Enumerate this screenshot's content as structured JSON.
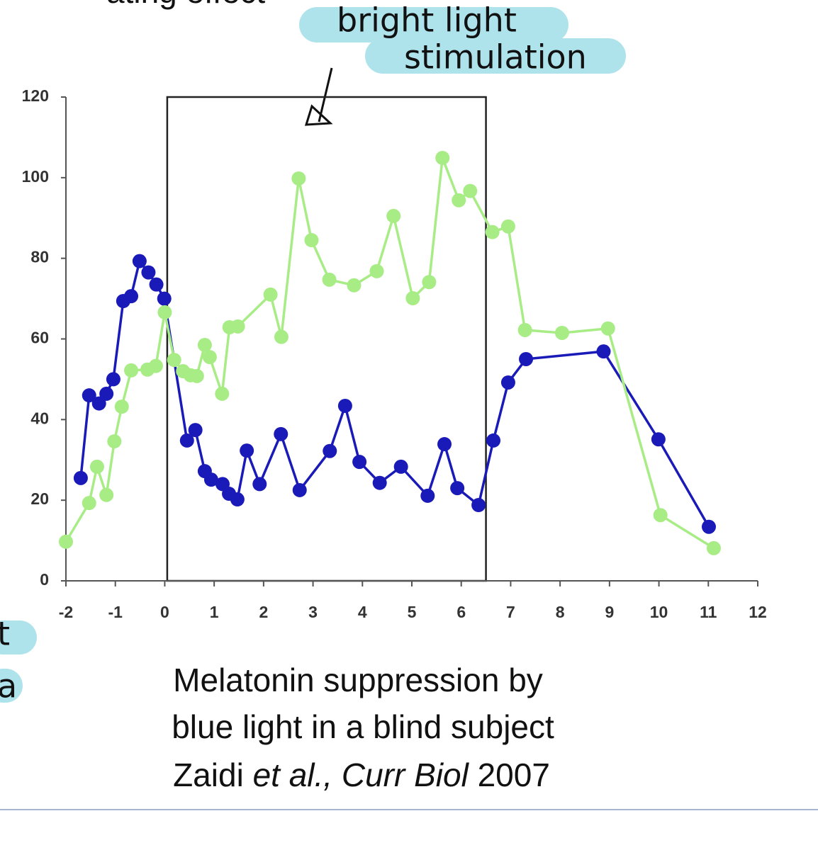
{
  "chart_data": {
    "type": "line",
    "fragments": [
      "ating effect",
      "t",
      "a"
    ],
    "annotation": [
      "bright light",
      "stimulation"
    ],
    "caption": [
      "Melatonin suppression by",
      "blue light in a blind subject"
    ],
    "citation": [
      "Zaidi ",
      "et al., ",
      "Curr Biol",
      " 2007"
    ],
    "xlim": [
      -2,
      12
    ],
    "xticks": [
      -2,
      -1,
      0,
      1,
      2,
      3,
      4,
      5,
      6,
      7,
      8,
      9,
      10,
      11,
      12
    ],
    "ylim": [
      0,
      120
    ],
    "yticks": [
      0,
      20,
      40,
      60,
      80,
      100,
      120
    ],
    "grid": false,
    "highlight_x": [
      0.05,
      6.5
    ],
    "series": [
      {
        "color": "#1a1ab8",
        "x": [
          -1.7,
          -1.53,
          -1.33,
          -1.18,
          -1.04,
          -0.84,
          -0.68,
          -0.51,
          -0.33,
          -0.17,
          -0.01,
          0.45,
          0.62,
          0.81,
          0.94,
          1.17,
          1.3,
          1.47,
          1.66,
          1.92,
          2.35,
          2.73,
          3.34,
          3.65,
          3.94,
          4.35,
          4.78,
          5.32,
          5.66,
          5.92,
          6.35,
          6.65,
          6.95,
          7.31,
          8.88,
          9.99,
          11.01
        ],
        "values": [
          25.5,
          46,
          44,
          46.4,
          50,
          69.4,
          70.6,
          79.3,
          76.5,
          73.5,
          70,
          34.8,
          37.4,
          27.2,
          25.1,
          24,
          21.6,
          20.2,
          32.3,
          24,
          36.4,
          22.5,
          32.2,
          43.4,
          29.5,
          24.3,
          28.3,
          21.1,
          33.9,
          23,
          18.8,
          34.8,
          49.2,
          55,
          56.9,
          35.1,
          13.4
        ]
      },
      {
        "color": "#a8ec86",
        "x": [
          -2,
          -1.53,
          -1.37,
          -1.18,
          -1.02,
          -0.87,
          -0.68,
          -0.35,
          -0.18,
          0,
          0.19,
          0.37,
          0.52,
          0.65,
          0.81,
          0.91,
          1.16,
          1.31,
          1.48,
          2.14,
          2.36,
          2.71,
          2.97,
          3.33,
          3.83,
          4.29,
          4.63,
          5.02,
          5.35,
          5.62,
          5.95,
          6.18,
          6.63,
          6.95,
          7.29,
          8.04,
          8.97,
          10.03,
          11.11
        ],
        "values": [
          9.7,
          19.3,
          28.3,
          21.3,
          34.6,
          43.2,
          52.2,
          52.4,
          53.3,
          66.6,
          54.8,
          52,
          51,
          50.8,
          58.5,
          55.5,
          46.4,
          62.9,
          63.1,
          71,
          60.5,
          99.8,
          84.5,
          74.7,
          73.3,
          76.8,
          90.5,
          70.1,
          74.1,
          104.9,
          94.4,
          96.7,
          86.5,
          87.9,
          62.2,
          61.5,
          62.6,
          16.3,
          8.1
        ]
      }
    ]
  }
}
